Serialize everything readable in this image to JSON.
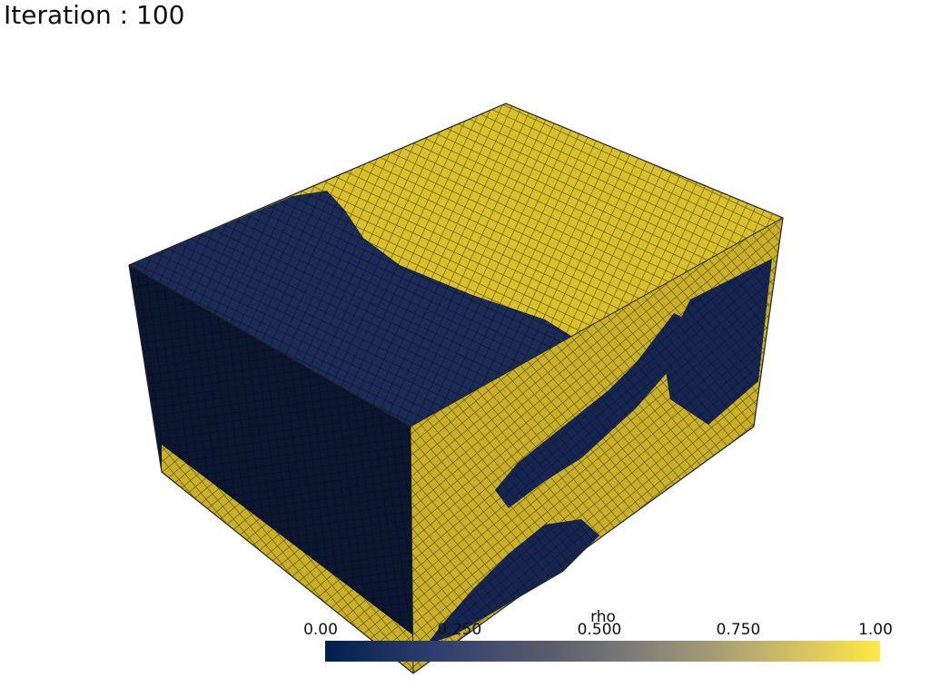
{
  "title": "Iteration : 100",
  "colorbar": {
    "label": "rho",
    "ticks": [
      "0.00",
      "0.250",
      "0.500",
      "0.750",
      "1.00"
    ],
    "colormap_colors": [
      "#00204d",
      "#575c6d",
      "#ffe945"
    ]
  },
  "render": {
    "dark_color": "#0f2048",
    "solid_color": "#d9c12e"
  }
}
